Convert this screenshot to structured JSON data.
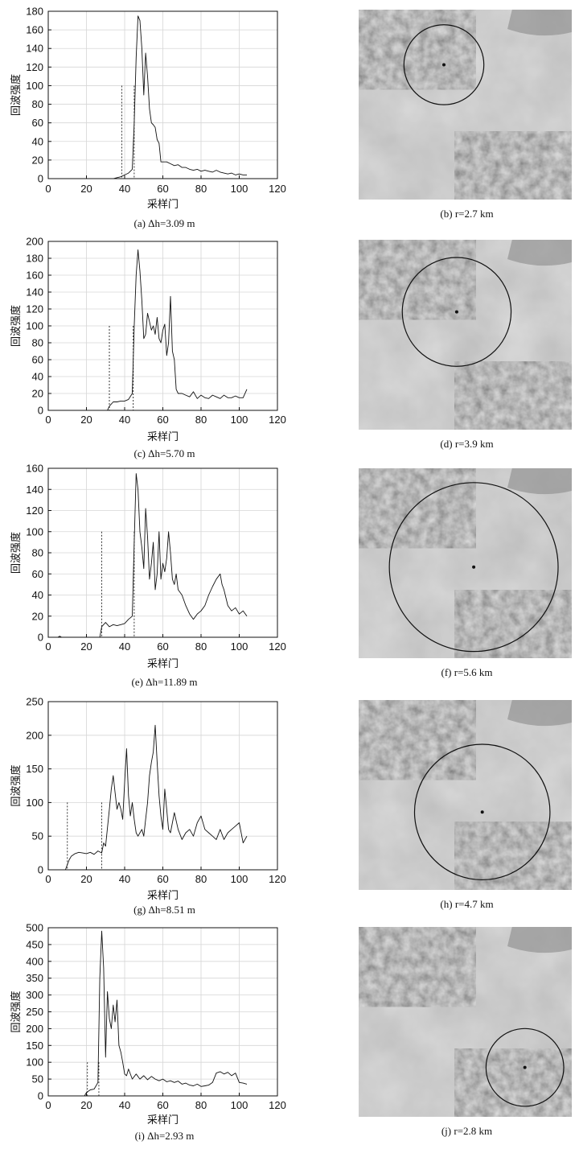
{
  "panels": [
    {
      "caption": "(a) Δh=3.09 m",
      "map_caption": "(b) r=2.7 km",
      "chart_data": {
        "type": "line",
        "xlabel": "采样门",
        "ylabel": "回波强度",
        "xlim": [
          0,
          120
        ],
        "ylim": [
          0,
          180
        ],
        "xticks": [
          0,
          20,
          40,
          60,
          80,
          100,
          120
        ],
        "yticks": [
          0,
          20,
          40,
          60,
          80,
          100,
          120,
          140,
          160,
          180
        ],
        "grid": true,
        "vlines": [
          {
            "x": 38.5,
            "y": 100
          },
          {
            "x": 45,
            "y": 100
          }
        ],
        "series": [
          {
            "x": [
              0,
              34,
              36,
              38,
              40,
              42,
              44,
              45,
              46,
              47,
              48,
              49,
              50,
              51,
              52,
              53,
              54,
              55,
              56,
              57,
              58,
              59,
              60,
              62,
              64,
              66,
              68,
              70,
              72,
              74,
              76,
              78,
              80,
              82,
              84,
              86,
              88,
              90,
              92,
              94,
              96,
              98,
              100,
              102,
              104
            ],
            "y": [
              0,
              0,
              1,
              2,
              4,
              6,
              10,
              60,
              130,
              175,
              170,
              140,
              90,
              135,
              110,
              75,
              60,
              58,
              55,
              42,
              38,
              18,
              18,
              18,
              16,
              14,
              15,
              12,
              12,
              10,
              9,
              10,
              8,
              9,
              8,
              7,
              9,
              7,
              6,
              5,
              6,
              4,
              5,
              4,
              4
            ]
          }
        ]
      },
      "map": {
        "circle_center_x": 0.4,
        "circle_center_y": 0.29,
        "circle_r": 0.36
      }
    },
    {
      "caption": "(c) Δh=5.70 m",
      "map_caption": "(d) r=3.9 km",
      "chart_data": {
        "type": "line",
        "xlabel": "采样门",
        "ylabel": "回波强度",
        "xlim": [
          0,
          120
        ],
        "ylim": [
          0,
          200
        ],
        "xticks": [
          0,
          20,
          40,
          60,
          80,
          100,
          120
        ],
        "yticks": [
          0,
          20,
          40,
          60,
          80,
          100,
          120,
          140,
          160,
          180,
          200
        ],
        "grid": true,
        "vlines": [
          {
            "x": 32,
            "y": 100
          },
          {
            "x": 44.5,
            "y": 100
          }
        ],
        "series": [
          {
            "x": [
              0,
              31,
              32,
              34,
              36,
              38,
              40,
              42,
              44,
              45,
              46,
              47,
              48,
              49,
              50,
              51,
              52,
              53,
              54,
              55,
              56,
              57,
              58,
              59,
              60,
              61,
              62,
              63,
              64,
              65,
              66,
              67,
              68,
              70,
              72,
              74,
              76,
              78,
              80,
              82,
              84,
              86,
              88,
              90,
              92,
              94,
              96,
              98,
              100,
              102,
              104
            ],
            "y": [
              0,
              0,
              5,
              10,
              10,
              11,
              11,
              13,
              20,
              100,
              160,
              190,
              165,
              130,
              85,
              90,
              115,
              105,
              95,
              100,
              90,
              110,
              85,
              80,
              95,
              102,
              65,
              80,
              135,
              70,
              60,
              25,
              20,
              20,
              18,
              16,
              22,
              14,
              18,
              15,
              14,
              18,
              16,
              14,
              18,
              15,
              15,
              17,
              15,
              15,
              25
            ]
          }
        ]
      },
      "map": {
        "circle_center_x": 0.46,
        "circle_center_y": 0.38,
        "circle_r": 0.49
      }
    },
    {
      "caption": "(e) Δh=11.89 m",
      "map_caption": "(f) r=5.6 km",
      "chart_data": {
        "type": "line",
        "xlabel": "采样门",
        "ylabel": "回波强度",
        "xlim": [
          0,
          120
        ],
        "ylim": [
          0,
          160
        ],
        "xticks": [
          0,
          20,
          40,
          60,
          80,
          100,
          120
        ],
        "yticks": [
          0,
          20,
          40,
          60,
          80,
          100,
          120,
          140,
          160
        ],
        "grid": true,
        "vlines": [
          {
            "x": 28,
            "y": 100
          },
          {
            "x": 45,
            "y": 100
          }
        ],
        "series": [
          {
            "x": [
              0,
              5,
              6,
              7,
              27,
              28,
              30,
              32,
              34,
              36,
              38,
              40,
              42,
              44,
              45,
              46,
              47,
              48,
              49,
              50,
              51,
              52,
              53,
              54,
              55,
              56,
              57,
              58,
              59,
              60,
              61,
              62,
              63,
              64,
              65,
              66,
              67,
              68,
              70,
              72,
              74,
              76,
              78,
              80,
              82,
              84,
              86,
              88,
              90,
              91,
              92,
              94,
              96,
              98,
              100,
              102,
              104
            ],
            "y": [
              0,
              0,
              1,
              0,
              0,
              10,
              14,
              10,
              12,
              11,
              12,
              13,
              17,
              20,
              90,
              155,
              140,
              100,
              85,
              65,
              122,
              95,
              55,
              70,
              90,
              45,
              60,
              100,
              55,
              70,
              62,
              75,
              100,
              80,
              55,
              50,
              60,
              45,
              40,
              30,
              22,
              17,
              22,
              25,
              30,
              40,
              48,
              55,
              60,
              50,
              45,
              30,
              25,
              28,
              22,
              25,
              20
            ]
          }
        ]
      },
      "map": {
        "circle_center_x": 0.54,
        "circle_center_y": 0.52,
        "circle_r": 0.76
      }
    },
    {
      "caption": "(g) Δh=8.51 m",
      "map_caption": "(h) r=4.7 km",
      "chart_data": {
        "type": "line",
        "xlabel": "采样门",
        "ylabel": "回波强度",
        "xlim": [
          0,
          120
        ],
        "ylim": [
          0,
          250
        ],
        "xticks": [
          0,
          20,
          40,
          60,
          80,
          100,
          120
        ],
        "yticks": [
          0,
          50,
          100,
          150,
          200,
          250
        ],
        "grid": true,
        "vlines": [
          {
            "x": 10,
            "y": 100
          },
          {
            "x": 28,
            "y": 100
          }
        ],
        "series": [
          {
            "x": [
              0,
              9,
              10,
              11,
              12,
              14,
              16,
              18,
              20,
              22,
              24,
              26,
              28,
              29,
              30,
              32,
              33,
              34,
              35,
              36,
              37,
              38,
              39,
              40,
              41,
              42,
              43,
              44,
              45,
              46,
              47,
              48,
              49,
              50,
              51,
              52,
              53,
              54,
              55,
              56,
              57,
              58,
              59,
              60,
              61,
              62,
              63,
              64,
              65,
              66,
              68,
              70,
              72,
              74,
              76,
              78,
              80,
              82,
              84,
              86,
              88,
              90,
              92,
              94,
              96,
              98,
              100,
              102,
              104
            ],
            "y": [
              0,
              0,
              8,
              15,
              20,
              24,
              26,
              25,
              24,
              26,
              23,
              28,
              25,
              40,
              35,
              90,
              120,
              140,
              115,
              90,
              100,
              90,
              75,
              130,
              180,
              110,
              80,
              100,
              75,
              55,
              50,
              55,
              60,
              50,
              75,
              100,
              140,
              160,
              175,
              215,
              160,
              110,
              80,
              60,
              120,
              90,
              60,
              55,
              70,
              85,
              60,
              45,
              55,
              60,
              50,
              70,
              80,
              60,
              55,
              50,
              45,
              60,
              45,
              55,
              60,
              65,
              70,
              40,
              50
            ]
          }
        ]
      },
      "map": {
        "circle_center_x": 0.58,
        "circle_center_y": 0.59,
        "circle_r": 0.61
      }
    },
    {
      "caption": "(i) Δh=2.93 m",
      "map_caption": "(j) r=2.8 km",
      "chart_data": {
        "type": "line",
        "xlabel": "采样门",
        "ylabel": "回波强度",
        "xlim": [
          0,
          120
        ],
        "ylim": [
          0,
          500
        ],
        "xticks": [
          0,
          20,
          40,
          60,
          80,
          100,
          120
        ],
        "yticks": [
          0,
          50,
          100,
          150,
          200,
          250,
          300,
          350,
          400,
          450,
          500
        ],
        "grid": true,
        "vlines": [
          {
            "x": 20.5,
            "y": 100
          },
          {
            "x": 26.5,
            "y": 100
          }
        ],
        "series": [
          {
            "x": [
              0,
              19,
              20,
              22,
              24,
              25,
              26,
              27,
              28,
              29,
              30,
              31,
              32,
              33,
              34,
              35,
              36,
              37,
              38,
              39,
              40,
              41,
              42,
              44,
              46,
              48,
              50,
              52,
              54,
              56,
              58,
              60,
              62,
              64,
              66,
              68,
              70,
              72,
              74,
              76,
              78,
              80,
              82,
              84,
              86,
              88,
              90,
              92,
              94,
              96,
              98,
              100,
              102,
              104
            ],
            "y": [
              0,
              0,
              10,
              18,
              20,
              30,
              40,
              350,
              490,
              380,
              115,
              310,
              230,
              200,
              270,
              220,
              285,
              150,
              130,
              100,
              65,
              60,
              80,
              50,
              65,
              50,
              60,
              48,
              58,
              50,
              45,
              50,
              42,
              45,
              40,
              44,
              35,
              38,
              32,
              30,
              35,
              28,
              30,
              32,
              40,
              68,
              72,
              65,
              70,
              60,
              68,
              40,
              38,
              35
            ]
          }
        ]
      },
      "map": {
        "circle_center_x": 0.78,
        "circle_center_y": 0.74,
        "circle_r": 0.35
      }
    }
  ]
}
